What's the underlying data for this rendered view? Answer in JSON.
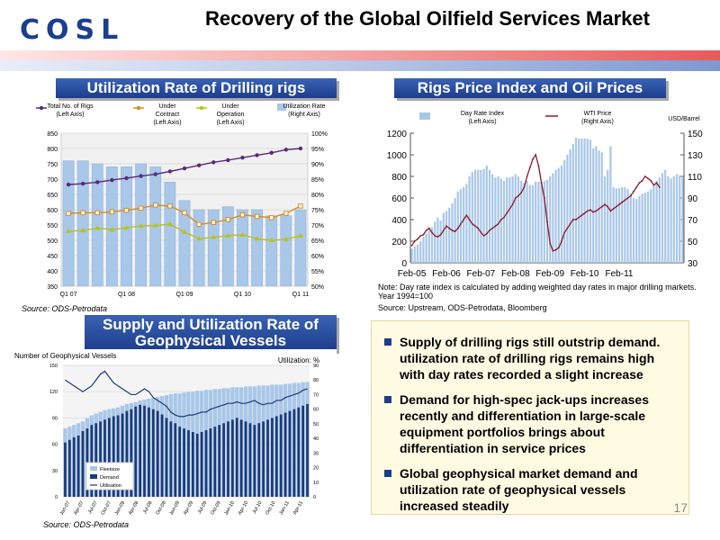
{
  "header": {
    "logo_text": "COSL",
    "title": "Recovery of the Global Oilfield Services Market"
  },
  "page_number": "17",
  "panels": {
    "drilling": {
      "title": "Utilization Rate of Drilling rigs",
      "source": "Source: ODS-Petrodata"
    },
    "rigs_price": {
      "title": "Rigs Price Index and Oil Prices",
      "note": "Note: Day rate index is calculated by adding weighted day rates in major drilling markets. Year 1994=100",
      "source": "Source: Upstream, ODS-Petrodata, Bloomberg"
    },
    "geophysical": {
      "title_line1": "Supply and Utilization Rate of",
      "title_line2": "Geophysical Vessels",
      "source": "Source: ODS-Petrodata"
    }
  },
  "bullets": [
    "Supply of drilling rigs still outstrip demand. utilization rate of drilling rigs remains high with day rates recorded a slight increase",
    "Demand for high-spec jack-ups increases recently and differentiation in large-scale equipment portfolios brings about differentiation in service prices",
    "Global geophysical market demand and utilization rate of geophysical vessels increased steadily"
  ],
  "colors": {
    "brand_blue": "#1d3d8c",
    "accent_red": "#e85a5a"
  },
  "chart_data": [
    {
      "type": "bar",
      "id": "drilling",
      "legend": [
        {
          "name": "Total No. of Rigs (Left Axis)",
          "line1": "Total No. of Rigs",
          "line2": "(Left Axis)",
          "color": "#5a2a7a"
        },
        {
          "name": "Under Contract (Left Axis)",
          "line1": "Under",
          "line2": "Contract",
          "line3": "(Left Axis)",
          "color": "#d98c1a"
        },
        {
          "name": "Under Operation (Left Axis)",
          "line1": "Under",
          "line2": "Operation",
          "line3": "(Left Axis)",
          "color": "#b7c21a"
        },
        {
          "name": "Utilization Rate (Right Axis)",
          "line1": "Utilization Rate",
          "line2": "(Right Axis)",
          "color": "#a9c7e8"
        }
      ],
      "left_ylim": [
        350,
        850
      ],
      "left_ticks": [
        "850",
        "800",
        "750",
        "700",
        "650",
        "600",
        "550",
        "500",
        "450",
        "400",
        "350"
      ],
      "right_ylim": [
        50,
        100
      ],
      "right_ticks": [
        "100%",
        "95%",
        "90%",
        "85%",
        "80%",
        "75%",
        "70%",
        "65%",
        "60%",
        "55%",
        "50%"
      ],
      "x_ticks": [
        "Q1 07",
        "Q1 08",
        "Q1 09",
        "Q1 10",
        "Q1 11"
      ],
      "x_tick_positions": [
        0,
        4,
        8,
        12,
        16
      ],
      "utilization": [
        91,
        91,
        90,
        89,
        89,
        90,
        89,
        84,
        78,
        75,
        75,
        76,
        75,
        75,
        73,
        73,
        75
      ],
      "total_rigs": [
        682,
        685,
        690,
        697,
        703,
        710,
        716,
        725,
        735,
        745,
        755,
        762,
        770,
        778,
        786,
        796,
        800
      ],
      "under_contract": [
        588,
        590,
        590,
        593,
        598,
        605,
        615,
        612,
        590,
        552,
        558,
        568,
        583,
        578,
        574,
        588,
        612
      ],
      "under_operation": [
        530,
        532,
        540,
        535,
        541,
        547,
        548,
        553,
        527,
        505,
        510,
        515,
        518,
        505,
        500,
        503,
        515
      ]
    },
    {
      "type": "bar",
      "id": "rigs_price",
      "legend": [
        {
          "name": "Day Rate Index (Left Axis)",
          "line1": "Day Rate Index",
          "line2": "(Left Axis)",
          "color": "#a9c7e8"
        },
        {
          "name": "WTI Price (Right Axis)",
          "line1": "WTI Price",
          "line2": "(Right Axis)",
          "color": "#8b1a2a"
        }
      ],
      "unit_label": "USD/Barrel",
      "left_ylim": [
        0,
        1200
      ],
      "left_ticks": [
        "1200",
        "1000",
        "800",
        "600",
        "400",
        "200",
        "0"
      ],
      "right_ylim": [
        30,
        150
      ],
      "right_ticks": [
        "150",
        "130",
        "110",
        "90",
        "70",
        "50",
        "30"
      ],
      "x_ticks": [
        "Feb-05",
        "Feb-06",
        "Feb-07",
        "Feb-08",
        "Feb-09",
        "Feb-10",
        "Feb-11"
      ],
      "x_tick_positions": [
        0,
        12,
        24,
        36,
        48,
        60,
        72
      ],
      "day_rate_index": [
        130,
        150,
        170,
        200,
        240,
        270,
        300,
        330,
        380,
        420,
        390,
        460,
        480,
        510,
        550,
        600,
        660,
        680,
        700,
        730,
        800,
        840,
        860,
        860,
        860,
        870,
        900,
        860,
        820,
        790,
        800,
        780,
        760,
        790,
        790,
        800,
        820,
        800,
        760,
        740,
        760,
        720,
        720,
        750,
        750,
        740,
        760,
        770,
        800,
        830,
        860,
        880,
        900,
        950,
        1000,
        1050,
        1100,
        1160,
        1150,
        1150,
        1150,
        1150,
        1140,
        1060,
        1080,
        1040,
        1020,
        800,
        860,
        1080,
        700,
        690,
        690,
        700,
        700,
        680,
        640,
        600,
        590,
        620,
        640,
        650,
        660,
        680,
        720,
        760,
        790,
        830,
        860,
        800,
        780,
        800,
        820,
        810,
        790
      ],
      "wti_price": [
        46,
        50,
        52,
        55,
        56,
        60,
        62,
        58,
        55,
        54,
        56,
        60,
        64,
        62,
        60,
        59,
        62,
        66,
        70,
        74,
        70,
        66,
        64,
        62,
        58,
        55,
        57,
        60,
        62,
        64,
        66,
        70,
        72,
        76,
        80,
        84,
        90,
        92,
        95,
        100,
        110,
        118,
        126,
        130,
        120,
        104,
        90,
        68,
        48,
        41,
        42,
        44,
        50,
        58,
        62,
        66,
        70,
        70,
        72,
        74,
        76,
        78,
        79,
        77,
        78,
        80,
        82,
        84,
        82,
        78,
        80,
        82,
        84,
        86,
        88,
        90,
        92,
        96,
        100,
        104,
        106,
        110,
        108,
        106,
        102,
        104,
        100
      ],
      "wti_price_note": "monthly, starting Feb-05"
    },
    {
      "type": "bar",
      "id": "geophysical",
      "left_axis_label": "Number of Geophysical Vessels",
      "right_axis_label": "Utilization: %",
      "left_ylim": [
        0,
        150
      ],
      "left_ticks": [
        "150",
        "120",
        "90",
        "60",
        "30",
        "0"
      ],
      "right_ylim": [
        0,
        90
      ],
      "right_ticks": [
        "90",
        "80",
        "70",
        "60",
        "50",
        "40",
        "30",
        "20",
        "10",
        "0"
      ],
      "legend": [
        {
          "name": "Fleetsize",
          "color": "#a9c7e8"
        },
        {
          "name": "Demand",
          "color": "#1a3a7a"
        },
        {
          "name": "Utilisation",
          "color": "#1a3a7a"
        }
      ],
      "x_ticks": [
        "Jan-07",
        "Apr-07",
        "Jul-07",
        "Oct-07",
        "Jan-08",
        "Apr-08",
        "Jul-08",
        "Oct-08",
        "Jan-09",
        "Apr-09",
        "Jul-09",
        "Oct-09",
        "Jan-10",
        "Apr-10",
        "Jul-10",
        "Oct-10",
        "Jan-11",
        "Apr-11"
      ],
      "fleetsize": [
        78,
        80,
        82,
        84,
        86,
        90,
        93,
        95,
        97,
        99,
        100,
        101,
        102,
        104,
        106,
        107,
        108,
        110,
        111,
        112,
        113,
        114,
        115,
        116,
        117,
        118,
        118,
        119,
        120,
        120,
        121,
        121,
        122,
        122,
        123,
        123,
        124,
        124,
        125,
        125,
        125,
        126,
        126,
        126,
        127,
        127,
        127,
        128,
        128,
        128,
        129,
        129,
        130,
        130,
        131,
        131
      ],
      "demand": [
        62,
        65,
        68,
        70,
        75,
        78,
        82,
        84,
        86,
        88,
        90,
        92,
        93,
        95,
        98,
        100,
        103,
        105,
        104,
        102,
        100,
        98,
        94,
        90,
        86,
        84,
        80,
        78,
        76,
        74,
        72,
        74,
        76,
        78,
        80,
        82,
        84,
        86,
        88,
        90,
        88,
        86,
        84,
        82,
        84,
        86,
        88,
        90,
        92,
        94,
        96,
        98,
        100,
        102,
        104,
        106
      ],
      "utilisation": [
        80,
        78,
        76,
        74,
        72,
        74,
        76,
        80,
        84,
        86,
        82,
        78,
        76,
        74,
        72,
        70,
        70,
        72,
        74,
        72,
        68,
        66,
        64,
        62,
        58,
        56,
        55,
        55,
        56,
        56,
        57,
        58,
        58,
        60,
        61,
        62,
        63,
        64,
        64,
        65,
        64,
        64,
        65,
        66,
        64,
        63,
        64,
        64,
        66,
        66,
        68,
        69,
        70,
        71,
        73,
        74
      ],
      "utilisation_note": "monthly from Jan-07, estimated"
    }
  ]
}
